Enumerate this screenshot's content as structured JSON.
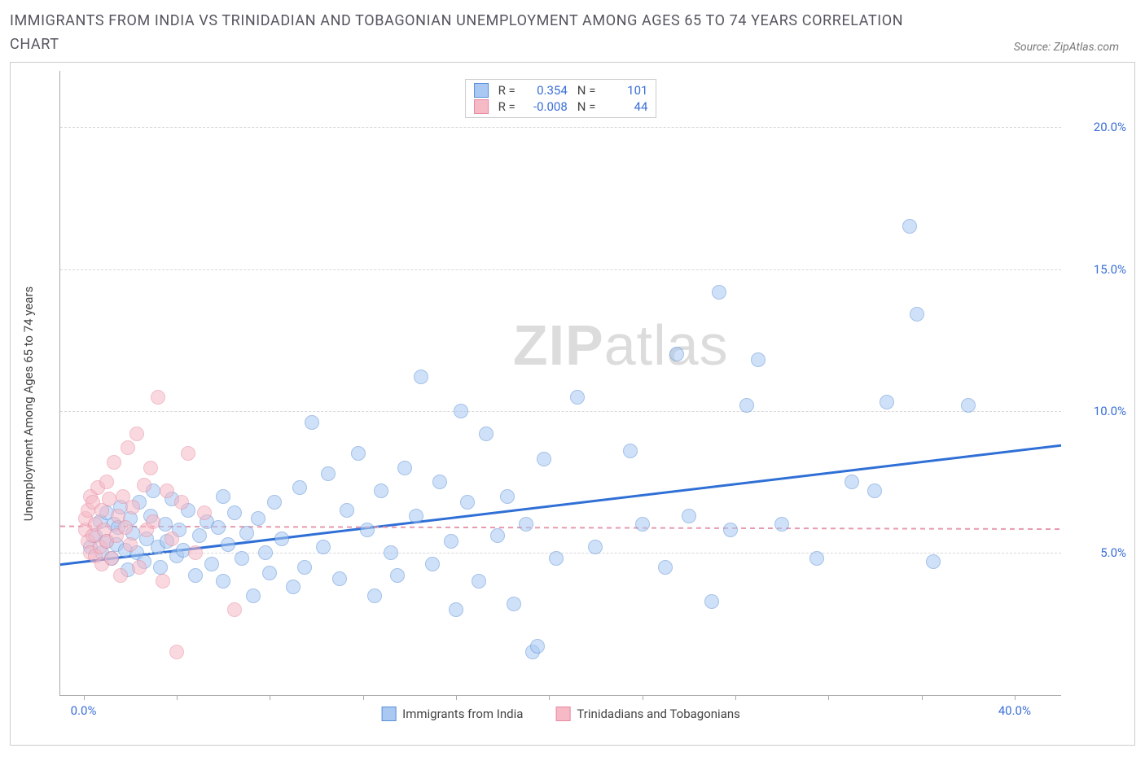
{
  "title": "IMMIGRANTS FROM INDIA VS TRINIDADIAN AND TOBAGONIAN UNEMPLOYMENT AMONG AGES 65 TO 74 YEARS CORRELATION CHART",
  "source": "Source: ZipAtlas.com",
  "watermark_bold": "ZIP",
  "watermark_rest": "atlas",
  "chart": {
    "type": "scatter",
    "background_color": "#ffffff",
    "border_color": "#cccccc",
    "axis_color": "#aaaaaa",
    "grid_color": "#d8d8d8",
    "ylabel": "Unemployment Among Ages 65 to 74 years",
    "label_fontsize": 15,
    "label_color": "#444444",
    "tick_label_color": "#3b6fd6",
    "xlim": [
      -1,
      42
    ],
    "ylim": [
      0,
      22
    ],
    "ytick_values": [
      5,
      10,
      15,
      20
    ],
    "ytick_labels": [
      "5.0%",
      "10.0%",
      "15.0%",
      "20.0%"
    ],
    "xtick_values": [
      0,
      4,
      8,
      12,
      16,
      20,
      24,
      28,
      32,
      36,
      40
    ],
    "xtick_labels": {
      "0": "0.0%",
      "40": "40.0%"
    },
    "series": [
      {
        "name": "Immigrants from India",
        "legend_label": "Immigrants from India",
        "fill": "#a9c9f3",
        "stroke": "#5a8fd6",
        "fill_opacity": 0.55,
        "marker_radius": 9,
        "R_label": "R =",
        "R": "0.354",
        "N_label": "N =",
        "N": "101",
        "trend": {
          "y_at_xmin": 4.6,
          "y_at_xmax": 8.8,
          "color": "#2f6fd6",
          "width": 3,
          "dash": "none"
        },
        "points": [
          [
            0.3,
            5.2
          ],
          [
            0.5,
            5.6
          ],
          [
            0.7,
            6.1
          ],
          [
            0.8,
            5.0
          ],
          [
            1.0,
            6.4
          ],
          [
            1.0,
            5.4
          ],
          [
            1.2,
            4.8
          ],
          [
            1.3,
            6.0
          ],
          [
            1.4,
            5.3
          ],
          [
            1.5,
            5.9
          ],
          [
            1.6,
            6.6
          ],
          [
            1.8,
            5.1
          ],
          [
            1.9,
            4.4
          ],
          [
            2.0,
            6.2
          ],
          [
            2.1,
            5.7
          ],
          [
            2.3,
            5.0
          ],
          [
            2.4,
            6.8
          ],
          [
            2.6,
            4.7
          ],
          [
            2.7,
            5.5
          ],
          [
            2.9,
            6.3
          ],
          [
            3.0,
            7.2
          ],
          [
            3.2,
            5.2
          ],
          [
            3.3,
            4.5
          ],
          [
            3.5,
            6.0
          ],
          [
            3.6,
            5.4
          ],
          [
            3.8,
            6.9
          ],
          [
            4.0,
            4.9
          ],
          [
            4.1,
            5.8
          ],
          [
            4.3,
            5.1
          ],
          [
            4.5,
            6.5
          ],
          [
            4.8,
            4.2
          ],
          [
            5.0,
            5.6
          ],
          [
            5.3,
            6.1
          ],
          [
            5.5,
            4.6
          ],
          [
            5.8,
            5.9
          ],
          [
            6.0,
            7.0
          ],
          [
            6.0,
            4.0
          ],
          [
            6.2,
            5.3
          ],
          [
            6.5,
            6.4
          ],
          [
            6.8,
            4.8
          ],
          [
            7.0,
            5.7
          ],
          [
            7.3,
            3.5
          ],
          [
            7.5,
            6.2
          ],
          [
            7.8,
            5.0
          ],
          [
            8.0,
            4.3
          ],
          [
            8.2,
            6.8
          ],
          [
            8.5,
            5.5
          ],
          [
            9.0,
            3.8
          ],
          [
            9.3,
            7.3
          ],
          [
            9.5,
            4.5
          ],
          [
            9.8,
            9.6
          ],
          [
            10.3,
            5.2
          ],
          [
            10.5,
            7.8
          ],
          [
            11.0,
            4.1
          ],
          [
            11.3,
            6.5
          ],
          [
            11.8,
            8.5
          ],
          [
            12.2,
            5.8
          ],
          [
            12.5,
            3.5
          ],
          [
            12.8,
            7.2
          ],
          [
            13.2,
            5.0
          ],
          [
            13.5,
            4.2
          ],
          [
            13.8,
            8.0
          ],
          [
            14.3,
            6.3
          ],
          [
            14.5,
            11.2
          ],
          [
            15.0,
            4.6
          ],
          [
            15.3,
            7.5
          ],
          [
            15.8,
            5.4
          ],
          [
            16.0,
            3.0
          ],
          [
            16.2,
            10.0
          ],
          [
            16.5,
            6.8
          ],
          [
            17.0,
            4.0
          ],
          [
            17.3,
            9.2
          ],
          [
            17.8,
            5.6
          ],
          [
            18.2,
            7.0
          ],
          [
            18.5,
            3.2
          ],
          [
            19.0,
            6.0
          ],
          [
            19.3,
            1.5
          ],
          [
            19.5,
            1.7
          ],
          [
            19.8,
            8.3
          ],
          [
            20.3,
            4.8
          ],
          [
            21.2,
            10.5
          ],
          [
            22.0,
            5.2
          ],
          [
            23.5,
            8.6
          ],
          [
            24.0,
            6.0
          ],
          [
            25.0,
            4.5
          ],
          [
            25.5,
            12.0
          ],
          [
            26.0,
            6.3
          ],
          [
            27.0,
            3.3
          ],
          [
            27.3,
            14.2
          ],
          [
            27.8,
            5.8
          ],
          [
            28.5,
            10.2
          ],
          [
            29.0,
            11.8
          ],
          [
            30.0,
            6.0
          ],
          [
            31.5,
            4.8
          ],
          [
            33.0,
            7.5
          ],
          [
            34.5,
            10.3
          ],
          [
            35.5,
            16.5
          ],
          [
            35.8,
            13.4
          ],
          [
            36.5,
            4.7
          ],
          [
            38.0,
            10.2
          ],
          [
            34.0,
            7.2
          ]
        ]
      },
      {
        "name": "Trinidadians and Tobagonians",
        "legend_label": "Trinidadians and Tobagonians",
        "fill": "#f6b9c6",
        "stroke": "#e78aa0",
        "fill_opacity": 0.55,
        "marker_radius": 9,
        "R_label": "R =",
        "R": "-0.008",
        "N_label": "N =",
        "N": "44",
        "trend": {
          "y_at_xmin": 5.95,
          "y_at_xmax": 5.85,
          "color": "#e79aae",
          "width": 2,
          "dash": "6 5"
        },
        "points": [
          [
            0.1,
            5.8
          ],
          [
            0.1,
            6.2
          ],
          [
            0.2,
            5.4
          ],
          [
            0.2,
            6.5
          ],
          [
            0.3,
            5.0
          ],
          [
            0.3,
            7.0
          ],
          [
            0.4,
            5.6
          ],
          [
            0.4,
            6.8
          ],
          [
            0.5,
            4.9
          ],
          [
            0.5,
            6.0
          ],
          [
            0.6,
            7.3
          ],
          [
            0.7,
            5.2
          ],
          [
            0.8,
            6.5
          ],
          [
            0.8,
            4.6
          ],
          [
            0.9,
            5.8
          ],
          [
            1.0,
            7.5
          ],
          [
            1.0,
            5.4
          ],
          [
            1.1,
            6.9
          ],
          [
            1.2,
            4.8
          ],
          [
            1.3,
            8.2
          ],
          [
            1.4,
            5.6
          ],
          [
            1.5,
            6.3
          ],
          [
            1.6,
            4.2
          ],
          [
            1.7,
            7.0
          ],
          [
            1.8,
            5.9
          ],
          [
            1.9,
            8.7
          ],
          [
            2.0,
            5.3
          ],
          [
            2.1,
            6.6
          ],
          [
            2.3,
            9.2
          ],
          [
            2.4,
            4.5
          ],
          [
            2.6,
            7.4
          ],
          [
            2.7,
            5.8
          ],
          [
            2.9,
            8.0
          ],
          [
            3.0,
            6.1
          ],
          [
            3.2,
            10.5
          ],
          [
            3.4,
            4.0
          ],
          [
            3.6,
            7.2
          ],
          [
            3.8,
            5.5
          ],
          [
            4.0,
            1.5
          ],
          [
            4.2,
            6.8
          ],
          [
            4.5,
            8.5
          ],
          [
            4.8,
            5.0
          ],
          [
            6.5,
            3.0
          ],
          [
            5.2,
            6.4
          ]
        ]
      }
    ]
  }
}
